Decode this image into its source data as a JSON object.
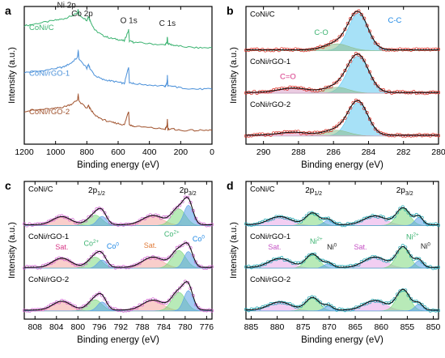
{
  "figure": {
    "colors": {
      "frame": "#000000",
      "text": "#000000",
      "fit_envelope": "#111111",
      "CoNi_C_survey": "#3cb371",
      "CoNi_rGO1_survey": "#4a90d9",
      "CoNi_rGO2_survey": "#a0522d",
      "label_green": "#3cb371",
      "label_blue": "#1e88e5",
      "label_pink": "#d63384",
      "label_orange": "#e07b39",
      "label_dark": "#222222",
      "label_magenta": "#c44fc4",
      "data_b": "#d9261c",
      "data_c": "#d060d0",
      "data_d": "#1aa5b0",
      "comp_cc": "#5fc8f0",
      "comp_co": "#8fbf8f",
      "comp_cdo": "#d8a0c8",
      "comp_sat": "#f4a6a0",
      "comp_sat_pink": "#e8a6e8",
      "comp_metal_green": "#7dd87d",
      "comp_metal_blue": "#5aa0e8",
      "comp_metal_yellow": "#f2e27a",
      "comp_metal_purple": "#b48ae0"
    }
  },
  "chart_data": [
    {
      "panel": "a",
      "type": "line",
      "title": "",
      "xlabel": "Binding energy (eV)",
      "ylabel": "Intensity (a.u.)",
      "xlim": [
        1200,
        0
      ],
      "xticks": [
        1200,
        1000,
        800,
        600,
        400,
        200,
        0
      ],
      "x_reversed": true,
      "annotations": [
        "Ni 2p",
        "Co 2p",
        "O 1s",
        "C 1s"
      ],
      "series": [
        {
          "name": "CoNi/C",
          "x": [
            1200,
            1100,
            1000,
            950,
            900,
            860,
            855,
            850,
            800,
            790,
            780,
            750,
            700,
            650,
            600,
            560,
            533,
            531,
            528,
            500,
            400,
            300,
            288,
            285,
            282,
            250,
            200,
            100,
            0
          ],
          "y": [
            0.86,
            0.88,
            0.9,
            0.91,
            0.93,
            0.95,
            0.98,
            0.94,
            0.9,
            0.93,
            0.9,
            0.83,
            0.79,
            0.77,
            0.76,
            0.75,
            0.83,
            0.8,
            0.75,
            0.74,
            0.73,
            0.72,
            0.74,
            0.78,
            0.73,
            0.72,
            0.71,
            0.7,
            0.7
          ]
        },
        {
          "name": "CoNi/rGO-1",
          "x": [
            1200,
            1100,
            1000,
            950,
            900,
            860,
            855,
            850,
            800,
            790,
            780,
            750,
            700,
            650,
            600,
            560,
            533,
            531,
            528,
            500,
            400,
            300,
            288,
            285,
            282,
            250,
            200,
            100,
            0
          ],
          "y": [
            0.52,
            0.53,
            0.55,
            0.56,
            0.59,
            0.63,
            0.68,
            0.62,
            0.55,
            0.58,
            0.55,
            0.5,
            0.47,
            0.46,
            0.45,
            0.44,
            0.56,
            0.52,
            0.45,
            0.44,
            0.43,
            0.42,
            0.44,
            0.5,
            0.42,
            0.42,
            0.41,
            0.4,
            0.4
          ]
        },
        {
          "name": "CoNi/rGO-2",
          "x": [
            1200,
            1100,
            1000,
            950,
            900,
            860,
            855,
            850,
            800,
            790,
            780,
            750,
            700,
            650,
            600,
            560,
            533,
            531,
            528,
            500,
            400,
            300,
            288,
            285,
            282,
            250,
            200,
            100,
            0
          ],
          "y": [
            0.24,
            0.25,
            0.26,
            0.27,
            0.29,
            0.32,
            0.36,
            0.31,
            0.26,
            0.28,
            0.26,
            0.21,
            0.18,
            0.16,
            0.15,
            0.14,
            0.24,
            0.2,
            0.14,
            0.13,
            0.12,
            0.11,
            0.13,
            0.18,
            0.11,
            0.11,
            0.1,
            0.1,
            0.1
          ]
        }
      ]
    },
    {
      "panel": "b",
      "type": "line",
      "title": "",
      "xlabel": "Binding energy (eV)",
      "ylabel": "Intensity (a.u.)",
      "xlim": [
        291,
        280
      ],
      "xticks": [
        290,
        288,
        286,
        284,
        282,
        280
      ],
      "x_reversed": true,
      "samples": [
        {
          "name": "CoNi/C",
          "peak_labels": [
            "C-O",
            "C-C"
          ],
          "components": [
            {
              "name": "C-C",
              "center": 284.6,
              "amplitude": 1.0,
              "fwhm": 1.3
            },
            {
              "name": "C-O",
              "center": 285.8,
              "amplitude": 0.18,
              "fwhm": 1.6
            }
          ]
        },
        {
          "name": "CoNi/rGO-1",
          "peak_labels": [
            "C=O"
          ],
          "components": [
            {
              "name": "C-C",
              "center": 284.6,
              "amplitude": 1.0,
              "fwhm": 1.4
            },
            {
              "name": "C-O",
              "center": 285.8,
              "amplitude": 0.16,
              "fwhm": 1.6
            },
            {
              "name": "C=O",
              "center": 288.3,
              "amplitude": 0.12,
              "fwhm": 2.0
            }
          ]
        },
        {
          "name": "CoNi/rGO-2",
          "peak_labels": [],
          "components": [
            {
              "name": "C-C",
              "center": 284.6,
              "amplitude": 0.9,
              "fwhm": 1.3
            },
            {
              "name": "C-O",
              "center": 285.8,
              "amplitude": 0.15,
              "fwhm": 1.6
            },
            {
              "name": "C=O",
              "center": 288.3,
              "amplitude": 0.08,
              "fwhm": 2.0
            }
          ]
        }
      ]
    },
    {
      "panel": "c",
      "type": "line",
      "title": "",
      "xlabel": "Binding energy (eV)",
      "ylabel": "Intensity (a.u.)",
      "xlim": [
        810,
        775
      ],
      "xticks": [
        808,
        804,
        800,
        796,
        792,
        788,
        784,
        780,
        776
      ],
      "x_reversed": true,
      "sections": [
        {
          "text": "2p",
          "sub": "1/2",
          "position": "upper center"
        },
        {
          "text": "2p",
          "sub": "3/2",
          "position": "upper right"
        }
      ],
      "samples": [
        {
          "name": "CoNi/C",
          "peak_labels": [],
          "components": [
            {
              "name": "Sat.",
              "center": 803.0,
              "amplitude": 0.22,
              "fwhm": 4.0
            },
            {
              "name": "Co2+",
              "center": 796.8,
              "amplitude": 0.28,
              "fwhm": 3.0
            },
            {
              "name": "Co0",
              "center": 795.5,
              "amplitude": 0.25,
              "fwhm": 2.0
            },
            {
              "name": "Sat.",
              "center": 786.0,
              "amplitude": 0.25,
              "fwhm": 4.5
            },
            {
              "name": "Co2+",
              "center": 781.2,
              "amplitude": 0.45,
              "fwhm": 3.0
            },
            {
              "name": "Co0",
              "center": 779.4,
              "amplitude": 0.55,
              "fwhm": 2.0
            }
          ]
        },
        {
          "name": "CoNi/rGO-1",
          "peak_labels": [
            {
              "text": "Sat.",
              "sup": ""
            },
            {
              "text": "Co",
              "sup": "2+"
            },
            {
              "text": "Co",
              "sup": "0"
            },
            {
              "text": "Sat.",
              "sup": ""
            },
            {
              "text": "Co",
              "sup": "2+"
            },
            {
              "text": "Co",
              "sup": "0"
            }
          ],
          "components": [
            {
              "name": "Sat.",
              "center": 803.0,
              "amplitude": 0.25,
              "fwhm": 4.0
            },
            {
              "name": "Co2+",
              "center": 796.8,
              "amplitude": 0.3,
              "fwhm": 3.0
            },
            {
              "name": "Co0",
              "center": 795.5,
              "amplitude": 0.22,
              "fwhm": 2.0
            },
            {
              "name": "Sat.",
              "center": 786.0,
              "amplitude": 0.28,
              "fwhm": 4.5
            },
            {
              "name": "Co2+",
              "center": 781.2,
              "amplitude": 0.48,
              "fwhm": 3.0
            },
            {
              "name": "Co0",
              "center": 779.4,
              "amplitude": 0.45,
              "fwhm": 2.0
            }
          ]
        },
        {
          "name": "CoNi/rGO-2",
          "peak_labels": [],
          "components": [
            {
              "name": "Sat.",
              "center": 803.0,
              "amplitude": 0.24,
              "fwhm": 4.0
            },
            {
              "name": "Co2+",
              "center": 796.8,
              "amplitude": 0.3,
              "fwhm": 3.0
            },
            {
              "name": "Co0",
              "center": 795.5,
              "amplitude": 0.24,
              "fwhm": 2.0
            },
            {
              "name": "Sat.",
              "center": 786.0,
              "amplitude": 0.27,
              "fwhm": 4.5
            },
            {
              "name": "Co2+",
              "center": 781.2,
              "amplitude": 0.5,
              "fwhm": 3.0
            },
            {
              "name": "Co0",
              "center": 779.4,
              "amplitude": 0.55,
              "fwhm": 2.0
            }
          ]
        }
      ]
    },
    {
      "panel": "d",
      "type": "line",
      "title": "",
      "xlabel": "Binding energy (eV)",
      "ylabel": "Intensity (a.u.)",
      "xlim": [
        886,
        849
      ],
      "xticks": [
        885,
        880,
        875,
        870,
        865,
        860,
        855,
        850
      ],
      "x_reversed": true,
      "sections": [
        {
          "text": "2p",
          "sub": "1/2",
          "position": "upper center"
        },
        {
          "text": "2p",
          "sub": "3/2",
          "position": "upper right"
        }
      ],
      "samples": [
        {
          "name": "CoNi/C",
          "peak_labels": [],
          "components": [
            {
              "name": "Sat.",
              "center": 879.5,
              "amplitude": 0.22,
              "fwhm": 5.0
            },
            {
              "name": "Ni2+",
              "center": 873.2,
              "amplitude": 0.32,
              "fwhm": 3.0
            },
            {
              "name": "Ni0",
              "center": 870.2,
              "amplitude": 0.14,
              "fwhm": 2.0
            },
            {
              "name": "Sat.",
              "center": 861.2,
              "amplitude": 0.24,
              "fwhm": 5.0
            },
            {
              "name": "Ni2+",
              "center": 855.8,
              "amplitude": 0.45,
              "fwhm": 3.0
            },
            {
              "name": "Ni0",
              "center": 852.8,
              "amplitude": 0.22,
              "fwhm": 1.8
            }
          ]
        },
        {
          "name": "CoNi/rGO-1",
          "peak_labels": [
            {
              "text": "Sat.",
              "sup": ""
            },
            {
              "text": "Ni",
              "sup": "2+"
            },
            {
              "text": "Ni",
              "sup": "0"
            },
            {
              "text": "Sat.",
              "sup": ""
            },
            {
              "text": "Ni",
              "sup": "2+"
            },
            {
              "text": "Ni",
              "sup": "0"
            }
          ],
          "components": [
            {
              "name": "Sat.",
              "center": 879.5,
              "amplitude": 0.24,
              "fwhm": 5.0
            },
            {
              "name": "Ni2+",
              "center": 873.2,
              "amplitude": 0.36,
              "fwhm": 3.0
            },
            {
              "name": "Ni0",
              "center": 870.2,
              "amplitude": 0.12,
              "fwhm": 2.0
            },
            {
              "name": "Sat.",
              "center": 861.2,
              "amplitude": 0.28,
              "fwhm": 5.0
            },
            {
              "name": "Ni2+",
              "center": 855.8,
              "amplitude": 0.55,
              "fwhm": 3.0
            },
            {
              "name": "Ni0",
              "center": 852.8,
              "amplitude": 0.2,
              "fwhm": 1.8
            }
          ]
        },
        {
          "name": "CoNi/rGO-2",
          "peak_labels": [],
          "components": [
            {
              "name": "Sat.",
              "center": 879.5,
              "amplitude": 0.22,
              "fwhm": 5.0
            },
            {
              "name": "Ni2+",
              "center": 873.2,
              "amplitude": 0.34,
              "fwhm": 3.0
            },
            {
              "name": "Ni0",
              "center": 870.2,
              "amplitude": 0.12,
              "fwhm": 2.0
            },
            {
              "name": "Sat.",
              "center": 861.2,
              "amplitude": 0.26,
              "fwhm": 5.0
            },
            {
              "name": "Ni2+",
              "center": 855.8,
              "amplitude": 0.55,
              "fwhm": 3.0
            },
            {
              "name": "Ni0",
              "center": 852.8,
              "amplitude": 0.18,
              "fwhm": 1.8
            }
          ]
        }
      ]
    }
  ]
}
